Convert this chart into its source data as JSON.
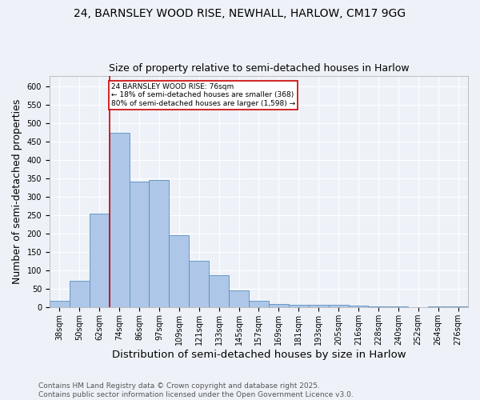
{
  "title_line1": "24, BARNSLEY WOOD RISE, NEWHALL, HARLOW, CM17 9GG",
  "title_line2": "Size of property relative to semi-detached houses in Harlow",
  "xlabel": "Distribution of semi-detached houses by size in Harlow",
  "ylabel": "Number of semi-detached properties",
  "categories": [
    "38sqm",
    "50sqm",
    "62sqm",
    "74sqm",
    "86sqm",
    "97sqm",
    "109sqm",
    "121sqm",
    "133sqm",
    "145sqm",
    "157sqm",
    "169sqm",
    "181sqm",
    "193sqm",
    "205sqm",
    "216sqm",
    "228sqm",
    "240sqm",
    "252sqm",
    "264sqm",
    "276sqm"
  ],
  "values": [
    18,
    73,
    255,
    475,
    342,
    347,
    197,
    127,
    88,
    47,
    18,
    9,
    7,
    8,
    8,
    5,
    3,
    2,
    1,
    3,
    2
  ],
  "bar_color": "#aec6e8",
  "bar_edge_color": "#5a8fc0",
  "property_bar_index": 3,
  "red_line_color": "#cc0000",
  "annotation_text": "24 BARNSLEY WOOD RISE: 76sqm\n← 18% of semi-detached houses are smaller (368)\n80% of semi-detached houses are larger (1,598) →",
  "annotation_box_color": "#ffffff",
  "annotation_box_edge": "#cc0000",
  "ylim": [
    0,
    630
  ],
  "yticks": [
    0,
    50,
    100,
    150,
    200,
    250,
    300,
    350,
    400,
    450,
    500,
    550,
    600
  ],
  "footer": "Contains HM Land Registry data © Crown copyright and database right 2025.\nContains public sector information licensed under the Open Government Licence v3.0.",
  "bg_color": "#eef2f8",
  "grid_color": "#ffffff",
  "title_fontsize": 10,
  "subtitle_fontsize": 9,
  "axis_label_fontsize": 9,
  "tick_fontsize": 7,
  "footer_fontsize": 6.5
}
